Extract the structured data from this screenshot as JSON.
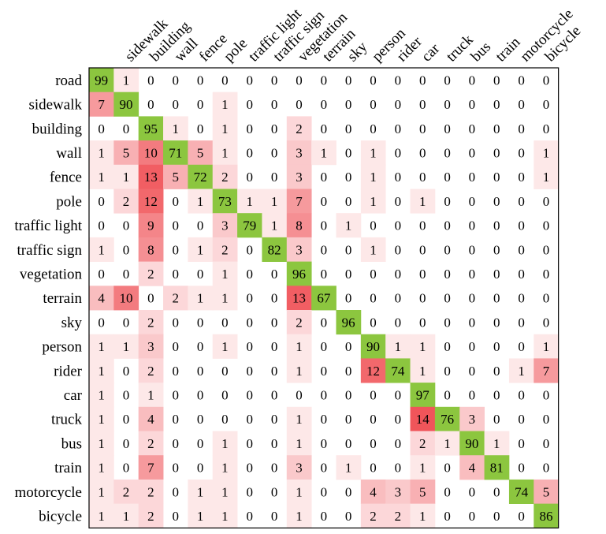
{
  "chart_data": {
    "type": "heatmap",
    "title": "",
    "xlabel": "",
    "ylabel": "",
    "labels": [
      "road",
      "sidewalk",
      "building",
      "wall",
      "fence",
      "pole",
      "traffic light",
      "traffic sign",
      "vegetation",
      "terrain",
      "sky",
      "person",
      "rider",
      "car",
      "truck",
      "bus",
      "train",
      "motorcycle",
      "bicycle"
    ],
    "matrix": [
      [
        99,
        1,
        0,
        0,
        0,
        0,
        0,
        0,
        0,
        0,
        0,
        0,
        0,
        0,
        0,
        0,
        0,
        0,
        0
      ],
      [
        7,
        90,
        0,
        0,
        0,
        1,
        0,
        0,
        0,
        0,
        0,
        0,
        0,
        0,
        0,
        0,
        0,
        0,
        0
      ],
      [
        0,
        0,
        95,
        1,
        0,
        1,
        0,
        0,
        2,
        0,
        0,
        0,
        0,
        0,
        0,
        0,
        0,
        0,
        0
      ],
      [
        1,
        5,
        10,
        71,
        5,
        1,
        0,
        0,
        3,
        1,
        0,
        1,
        0,
        0,
        0,
        0,
        0,
        0,
        1
      ],
      [
        1,
        1,
        13,
        5,
        72,
        2,
        0,
        0,
        3,
        0,
        0,
        1,
        0,
        0,
        0,
        0,
        0,
        0,
        1
      ],
      [
        0,
        2,
        12,
        0,
        1,
        73,
        1,
        1,
        7,
        0,
        0,
        1,
        0,
        1,
        0,
        0,
        0,
        0,
        0
      ],
      [
        0,
        0,
        9,
        0,
        0,
        3,
        79,
        1,
        8,
        0,
        1,
        0,
        0,
        0,
        0,
        0,
        0,
        0,
        0
      ],
      [
        1,
        0,
        8,
        0,
        1,
        2,
        0,
        82,
        3,
        0,
        0,
        1,
        0,
        0,
        0,
        0,
        0,
        0,
        0
      ],
      [
        0,
        0,
        2,
        0,
        0,
        1,
        0,
        0,
        96,
        0,
        0,
        0,
        0,
        0,
        0,
        0,
        0,
        0,
        0
      ],
      [
        4,
        10,
        0,
        2,
        1,
        1,
        0,
        0,
        13,
        67,
        0,
        0,
        0,
        0,
        0,
        0,
        0,
        0,
        0
      ],
      [
        0,
        0,
        2,
        0,
        0,
        0,
        0,
        0,
        2,
        0,
        96,
        0,
        0,
        0,
        0,
        0,
        0,
        0,
        0
      ],
      [
        1,
        1,
        3,
        0,
        0,
        1,
        0,
        0,
        1,
        0,
        0,
        90,
        1,
        1,
        0,
        0,
        0,
        0,
        1
      ],
      [
        1,
        0,
        2,
        0,
        0,
        0,
        0,
        0,
        1,
        0,
        0,
        12,
        74,
        1,
        0,
        0,
        0,
        1,
        7
      ],
      [
        1,
        0,
        1,
        0,
        0,
        0,
        0,
        0,
        0,
        0,
        0,
        0,
        0,
        97,
        0,
        0,
        0,
        0,
        0
      ],
      [
        1,
        0,
        4,
        0,
        0,
        0,
        0,
        0,
        1,
        0,
        0,
        0,
        0,
        14,
        76,
        3,
        0,
        0,
        0
      ],
      [
        1,
        0,
        2,
        0,
        0,
        1,
        0,
        0,
        1,
        0,
        0,
        0,
        0,
        2,
        1,
        90,
        1,
        0,
        0
      ],
      [
        1,
        0,
        7,
        0,
        0,
        1,
        0,
        0,
        3,
        0,
        1,
        0,
        0,
        1,
        0,
        4,
        81,
        0,
        0
      ],
      [
        1,
        2,
        2,
        0,
        1,
        1,
        0,
        0,
        1,
        0,
        0,
        4,
        3,
        5,
        0,
        0,
        0,
        74,
        5
      ],
      [
        1,
        1,
        2,
        0,
        1,
        1,
        0,
        0,
        1,
        0,
        0,
        2,
        2,
        1,
        0,
        0,
        0,
        0,
        86
      ]
    ],
    "colors": {
      "diagonal": "#8cc63f",
      "off_diagonal_max": "#f0555a",
      "background": "#ffffff",
      "border": "#000000"
    }
  }
}
